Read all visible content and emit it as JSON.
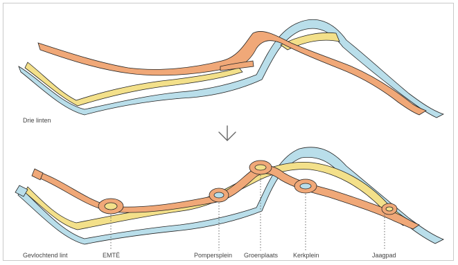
{
  "colors": {
    "orange": "#F0A878",
    "blue": "#B9DEEA",
    "yellow": "#F3E08A",
    "outline": "#222222",
    "guide": "#666666",
    "arrow": "#666666"
  },
  "panels": {
    "top_label": "Drie linten",
    "bottom_label": "Gevlochtend lint"
  },
  "places": [
    "EMTÉ",
    "Pompersplein",
    "Groenplaats",
    "Kerkplein",
    "Jaagpad"
  ]
}
